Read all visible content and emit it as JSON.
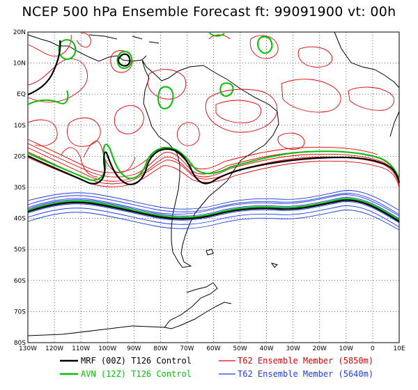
{
  "title": "NCEP 500 hPa Ensemble Forecast  ft: 99091900 vt: 00h",
  "axes": {
    "lat_labels": [
      "20N",
      "10N",
      "EQ",
      "10S",
      "20S",
      "30S",
      "40S",
      "50S",
      "60S",
      "70S",
      "80S"
    ],
    "lon_labels": [
      "130W",
      "120W",
      "110W",
      "100W",
      "90W",
      "80W",
      "70W",
      "60W",
      "50W",
      "40W",
      "30W",
      "20W",
      "10W",
      "0",
      "10E"
    ]
  },
  "legend": [
    {
      "label": "MRF (00Z) T126 Control",
      "color": "#000000"
    },
    {
      "label": "AVN (12Z) T126 Control",
      "color": "#00c000"
    },
    {
      "label": "T62 Ensemble Member (5850m)",
      "color": "#e00000"
    },
    {
      "label": "T62 Ensemble Member (5640m)",
      "color": "#1e3ce6"
    }
  ],
  "colors": {
    "grid": "#000000",
    "red": "#e00000",
    "green": "#00c000",
    "blue": "#1e3ce6",
    "black": "#000000"
  }
}
